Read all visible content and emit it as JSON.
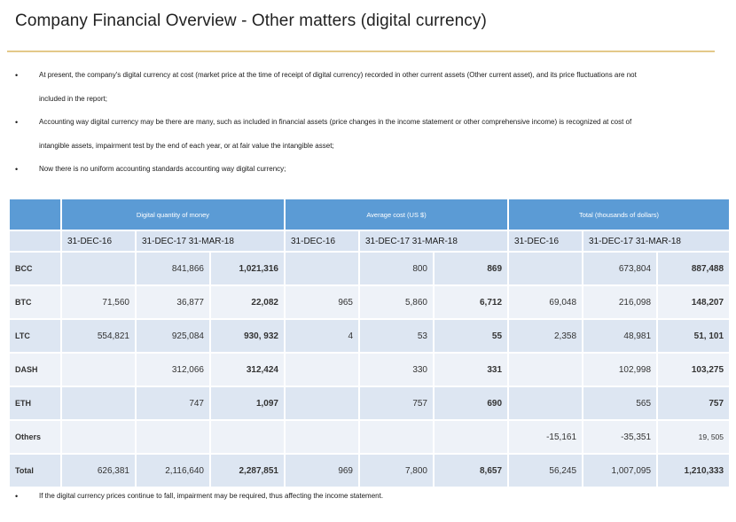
{
  "title": "Company Financial Overview - Other matters (digital currency)",
  "bullets": [
    {
      "line1": "At present, the company's digital currency at cost (market price at the time of receipt of digital currency) recorded in other current assets (Other current asset), and its price fluctuations are not",
      "line2": "included in the report;"
    },
    {
      "line1": "Accounting way digital currency may be there are many, such as included in financial assets (price changes in the income statement or other comprehensive income) is recognized at cost of",
      "line2": "intangible assets, impairment test by the end of each year, or at fair value the intangible asset;"
    },
    {
      "line1": "Now there is no uniform accounting standards accounting way digital currency;",
      "line2": ""
    }
  ],
  "bullet_glyph": "•",
  "table": {
    "groups": [
      "Digital quantity of money",
      "Average cost (US $)",
      "Total (thousands of dollars)"
    ],
    "dates": [
      "31-DEC-16",
      "31-DEC-17 31-MAR-18",
      "31-DEC-16",
      "31-DEC-17 31-MAR-18",
      "31-DEC-16",
      "31-DEC-17 31-MAR-18"
    ],
    "rows": [
      {
        "label": "BCC",
        "cells": [
          "",
          "841,866",
          "1,021,316",
          "",
          "800",
          "869",
          "",
          "673,804",
          "887,488"
        ]
      },
      {
        "label": "BTC",
        "cells": [
          "71,560",
          "36,877",
          "22,082",
          "965",
          "5,860",
          "6,712",
          "69,048",
          "216,098",
          "148,207"
        ]
      },
      {
        "label": "LTC",
        "cells": [
          "554,821",
          "925,084",
          "930, 932",
          "4",
          "53",
          "55",
          "2,358",
          "48,981",
          "51, 101"
        ]
      },
      {
        "label": "DASH",
        "cells": [
          "",
          "312,066",
          "312,424",
          "",
          "330",
          "331",
          "",
          "102,998",
          "103,275"
        ]
      },
      {
        "label": "ETH",
        "cells": [
          "",
          "747",
          "1,097",
          "",
          "757",
          "690",
          "",
          "565",
          "757"
        ]
      },
      {
        "label": "Others",
        "cells": [
          "",
          "",
          "",
          "",
          "",
          "",
          "-15,161",
          "-35,351",
          "19, 505"
        ]
      },
      {
        "label": "Total",
        "cells": [
          "626,381",
          "2,116,640",
          "2,287,851",
          "969",
          "7,800",
          "8,657",
          "56,245",
          "1,007,095",
          "1,210,333"
        ]
      }
    ]
  },
  "footnote": "If the digital currency prices continue to fall, impairment may be required, thus affecting the income statement."
}
